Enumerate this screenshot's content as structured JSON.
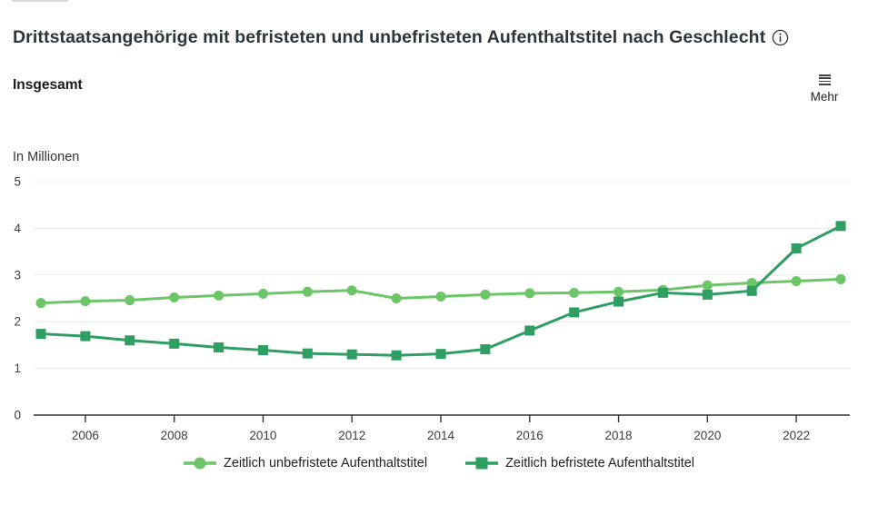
{
  "header": {
    "title": "Drittstaatsangehörige mit befristeten und unbefristeten Aufenthaltstitel nach Geschlecht",
    "info_icon": "info-circle",
    "section_label": "Insgesamt",
    "menu_button": {
      "label": "Mehr",
      "icon": "hamburger-menu"
    }
  },
  "chart_data": {
    "type": "line",
    "title": "Drittstaatsangehörige mit befristeten und unbefristeten Aufenthaltstitel nach Geschlecht",
    "unit_label": "In Millionen",
    "xlabel": "",
    "ylabel": "In Millionen",
    "x": [
      2005,
      2006,
      2007,
      2008,
      2009,
      2010,
      2011,
      2012,
      2013,
      2014,
      2015,
      2016,
      2017,
      2018,
      2019,
      2020,
      2021,
      2022,
      2023
    ],
    "series": [
      {
        "name": "Zeitlich unbefristete Aufenthaltstitel",
        "marker": "circle",
        "color": "#6cc566",
        "values": [
          2.4,
          2.44,
          2.46,
          2.52,
          2.56,
          2.6,
          2.64,
          2.67,
          2.5,
          2.54,
          2.58,
          2.61,
          2.62,
          2.64,
          2.68,
          2.78,
          2.83,
          2.87,
          2.91
        ]
      },
      {
        "name": "Zeitlich befristete Aufenthaltstitel",
        "marker": "square",
        "color": "#2f9e62",
        "values": [
          1.74,
          1.69,
          1.6,
          1.53,
          1.45,
          1.39,
          1.32,
          1.3,
          1.28,
          1.31,
          1.41,
          1.81,
          2.2,
          2.43,
          2.62,
          2.58,
          2.66,
          3.57,
          4.05
        ]
      }
    ],
    "ylim": [
      0,
      5
    ],
    "yticks": [
      0,
      1,
      2,
      3,
      4,
      5
    ],
    "xticks": [
      2006,
      2008,
      2010,
      2012,
      2014,
      2016,
      2018,
      2020,
      2022
    ],
    "grid": true,
    "legend_position": "bottom",
    "colors": {
      "grid": "#ebebeb",
      "axis": "#333333",
      "tick_label": "#3d3d3d"
    }
  }
}
